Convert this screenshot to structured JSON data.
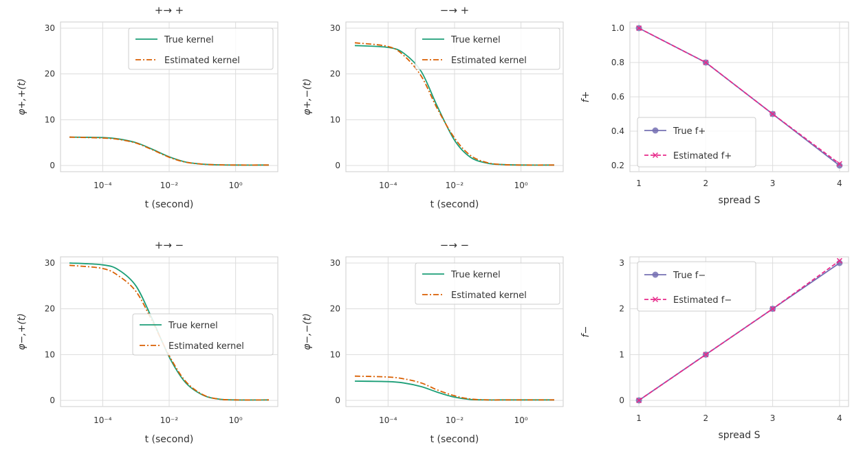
{
  "colors": {
    "true_kernel": "#1b9e77",
    "estimated_kernel": "#d95f02",
    "true_f": "#7570b3",
    "estimated_f": "#e7298a"
  },
  "chart_data": [
    {
      "type": "line",
      "title": "+→ +",
      "xlabel": "t (second)",
      "ylabel": "φ+,+(t)",
      "xscale": "log",
      "xlim": [
        1e-05,
        10
      ],
      "ylim": [
        0,
        30
      ],
      "x_tick_labels": [
        "10⁻⁴",
        "10⁻²",
        "10⁰"
      ],
      "y_tick_labels": [
        "0",
        "10",
        "20",
        "30"
      ],
      "legend_position": "upper right",
      "x": [
        1e-05,
        0.0001,
        0.0003,
        0.001,
        0.003,
        0.01,
        0.03,
        0.1,
        0.3,
        1,
        10
      ],
      "series": [
        {
          "name": "True kernel",
          "values": [
            6.2,
            6.1,
            5.8,
            5.0,
            3.6,
            1.9,
            0.8,
            0.3,
            0.15,
            0.1,
            0.1
          ]
        },
        {
          "name": "Estimated kernel",
          "values": [
            6.2,
            6.0,
            5.7,
            4.9,
            3.5,
            1.8,
            0.75,
            0.3,
            0.15,
            0.1,
            0.1
          ]
        }
      ]
    },
    {
      "type": "line",
      "title": "−→ +",
      "xlabel": "t (second)",
      "ylabel": "φ+,−(t)",
      "xscale": "log",
      "xlim": [
        1e-05,
        10
      ],
      "ylim": [
        0,
        30
      ],
      "x_tick_labels": [
        "10⁻⁴",
        "10⁻²",
        "10⁰"
      ],
      "y_tick_labels": [
        "0",
        "10",
        "20",
        "30"
      ],
      "legend_position": "upper right",
      "x": [
        1e-05,
        0.0001,
        0.0003,
        0.001,
        0.003,
        0.01,
        0.03,
        0.1,
        0.3,
        1,
        10
      ],
      "series": [
        {
          "name": "True kernel",
          "values": [
            26.2,
            25.8,
            24.5,
            20.5,
            13.0,
            5.5,
            1.8,
            0.5,
            0.2,
            0.1,
            0.1
          ]
        },
        {
          "name": "Estimated kernel",
          "values": [
            26.8,
            26.0,
            24.0,
            19.5,
            12.5,
            6.0,
            2.2,
            0.6,
            0.2,
            0.1,
            0.1
          ]
        }
      ]
    },
    {
      "type": "line",
      "xlabel": "spread S",
      "ylabel": "f+",
      "ylim": [
        0.2,
        1.0
      ],
      "x": [
        1,
        2,
        3,
        4
      ],
      "y_tick_labels": [
        "0.2",
        "0.4",
        "0.6",
        "0.8",
        "1.0"
      ],
      "legend_position": "lower left",
      "series": [
        {
          "name": "True f+",
          "values": [
            1.0,
            0.8,
            0.5,
            0.2
          ]
        },
        {
          "name": "Estimated f+",
          "values": [
            1.0,
            0.8,
            0.5,
            0.21
          ]
        }
      ]
    },
    {
      "type": "line",
      "title": "+→ −",
      "xlabel": "t (second)",
      "ylabel": "φ−,+(t)",
      "xscale": "log",
      "xlim": [
        1e-05,
        10
      ],
      "ylim": [
        0,
        30
      ],
      "x_tick_labels": [
        "10⁻⁴",
        "10⁻²",
        "10⁰"
      ],
      "y_tick_labels": [
        "0",
        "10",
        "20",
        "30"
      ],
      "legend_position": "center right",
      "x": [
        1e-05,
        0.0001,
        0.0003,
        0.001,
        0.003,
        0.01,
        0.03,
        0.1,
        0.3,
        1,
        10
      ],
      "series": [
        {
          "name": "True kernel",
          "values": [
            30.0,
            29.6,
            28.5,
            25.0,
            18.0,
            9.5,
            4.0,
            1.2,
            0.3,
            0.1,
            0.1
          ]
        },
        {
          "name": "Estimated kernel",
          "values": [
            29.5,
            28.8,
            27.2,
            23.8,
            17.5,
            9.8,
            4.3,
            1.3,
            0.3,
            0.1,
            0.1
          ]
        }
      ]
    },
    {
      "type": "line",
      "title": "−→ −",
      "xlabel": "t (second)",
      "ylabel": "φ−,−(t)",
      "xscale": "log",
      "xlim": [
        1e-05,
        10
      ],
      "ylim": [
        0,
        30
      ],
      "x_tick_labels": [
        "10⁻⁴",
        "10⁻²",
        "10⁰"
      ],
      "y_tick_labels": [
        "0",
        "10",
        "20",
        "30"
      ],
      "legend_position": "upper right",
      "x": [
        1e-05,
        0.0001,
        0.0003,
        0.001,
        0.003,
        0.01,
        0.03,
        0.1,
        0.3,
        1,
        10
      ],
      "series": [
        {
          "name": "True kernel",
          "values": [
            4.2,
            4.1,
            3.8,
            3.0,
            1.8,
            0.7,
            0.2,
            0.1,
            0.1,
            0.1,
            0.1
          ]
        },
        {
          "name": "Estimated kernel",
          "values": [
            5.3,
            5.1,
            4.7,
            3.8,
            2.3,
            1.0,
            0.3,
            0.1,
            0.1,
            0.1,
            0.1
          ]
        }
      ]
    },
    {
      "type": "line",
      "xlabel": "spread S",
      "ylabel": "f−",
      "ylim": [
        0,
        3
      ],
      "x": [
        1,
        2,
        3,
        4
      ],
      "y_tick_labels": [
        "0",
        "1",
        "2",
        "3"
      ],
      "legend_position": "upper left",
      "series": [
        {
          "name": "True f−",
          "values": [
            0,
            1,
            2,
            3
          ]
        },
        {
          "name": "Estimated f−",
          "values": [
            0,
            1,
            2,
            3.05
          ]
        }
      ]
    }
  ]
}
